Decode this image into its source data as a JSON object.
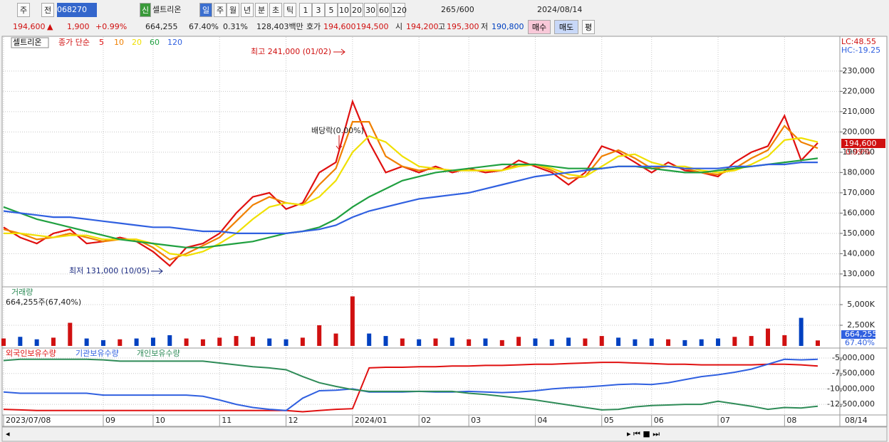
{
  "toolbar": {
    "row1": [
      "주",
      "전",
      "068270",
      "신",
      "셀트리온",
      "일",
      "주",
      "월",
      "년",
      "분",
      "초",
      "틱",
      "1",
      "3",
      "5",
      "10",
      "20",
      "30",
      "60",
      "120",
      "265",
      "/600",
      "2024/08/14"
    ],
    "row2": [
      "194,600",
      "▲",
      "1,900",
      "+0.99%",
      "664,255",
      "67.40%",
      "0.31%",
      "128,403백만",
      "호가",
      "194,600",
      "194,500",
      "시",
      "194,200",
      "고",
      "195,300",
      "저",
      "190,800",
      "매수",
      "매도",
      "평"
    ]
  },
  "chart_data": [
    {
      "type": "line",
      "stock": "셀트리온",
      "legend_title": "종가 단순",
      "annotations": [
        "최고 241,000 (01/02)",
        "배당락(0.00%)",
        "최저 131,000 (10/05)"
      ],
      "side_labels": [
        "LC:48.55",
        "HC:-19.25"
      ],
      "last_price": "194,600",
      "last_change": "0.99%",
      "ylim": [
        124000,
        246800
      ],
      "yticks": [
        {
          "value": 130000,
          "label": "130,000"
        },
        {
          "value": 140000,
          "label": "140,000"
        },
        {
          "value": 150000,
          "label": "150,000"
        },
        {
          "value": 160000,
          "label": "160,000"
        },
        {
          "value": 170000,
          "label": "170,000"
        },
        {
          "value": 180000,
          "label": "180,000"
        },
        {
          "value": 190000,
          "label": "190,000"
        },
        {
          "value": 200000,
          "label": "200,000"
        },
        {
          "value": 210000,
          "label": "210,000"
        },
        {
          "value": 220000,
          "label": "220,000"
        },
        {
          "value": 230000,
          "label": "230,000"
        }
      ],
      "grid": true,
      "series": [
        {
          "name": "5",
          "color": "#e01010",
          "values": [
            153000,
            148000,
            145000,
            150000,
            152000,
            145000,
            146000,
            148000,
            146000,
            141000,
            134000,
            143000,
            145000,
            150000,
            160000,
            168000,
            170000,
            162000,
            165000,
            180000,
            185000,
            215000,
            195000,
            180000,
            183000,
            180000,
            183000,
            180000,
            182000,
            180000,
            181000,
            186000,
            183000,
            180000,
            174000,
            180000,
            193000,
            190000,
            185000,
            180000,
            185000,
            181000,
            180000,
            178000,
            185000,
            190000,
            193000,
            208000,
            186000,
            194600
          ]
        },
        {
          "name": "10",
          "color": "#f08000",
          "values": [
            152000,
            150000,
            147000,
            148000,
            150000,
            148000,
            146000,
            147000,
            147000,
            143000,
            137000,
            140000,
            144000,
            148000,
            156000,
            164000,
            168000,
            165000,
            164000,
            174000,
            182000,
            205000,
            205000,
            188000,
            183000,
            181000,
            182000,
            181000,
            181000,
            181000,
            181000,
            184000,
            184000,
            181000,
            177000,
            178000,
            188000,
            191000,
            187000,
            182000,
            183000,
            182000,
            180000,
            179000,
            182000,
            187000,
            191000,
            203000,
            195000,
            192000
          ]
        },
        {
          "name": "20",
          "color": "#f0e000",
          "values": [
            150000,
            150000,
            149000,
            148000,
            149000,
            149000,
            147000,
            147000,
            147000,
            145000,
            140000,
            139000,
            141000,
            145000,
            150000,
            157000,
            163000,
            165000,
            164000,
            168000,
            176000,
            190000,
            198000,
            195000,
            188000,
            183000,
            182000,
            181000,
            181000,
            181000,
            181000,
            183000,
            184000,
            182000,
            179000,
            178000,
            183000,
            188000,
            189000,
            185000,
            183000,
            183000,
            181000,
            180000,
            181000,
            184000,
            188000,
            196000,
            197000,
            195000
          ]
        },
        {
          "name": "60",
          "color": "#20a040",
          "values": [
            163000,
            160000,
            157000,
            155000,
            153000,
            151000,
            149000,
            147000,
            146000,
            145000,
            144000,
            143000,
            143000,
            144000,
            145000,
            146000,
            148000,
            150000,
            151000,
            153000,
            157000,
            163000,
            168000,
            172000,
            176000,
            178000,
            180000,
            181000,
            182000,
            183000,
            184000,
            184000,
            184000,
            183000,
            182000,
            182000,
            182000,
            183000,
            183000,
            182000,
            181000,
            180000,
            180000,
            181000,
            182000,
            183000,
            184000,
            185000,
            186000,
            187000
          ]
        },
        {
          "name": "120",
          "color": "#3060e0",
          "values": [
            161000,
            160000,
            159000,
            158000,
            158000,
            157000,
            156000,
            155000,
            154000,
            153000,
            153000,
            152000,
            151000,
            151000,
            150000,
            150000,
            150000,
            150000,
            151000,
            152000,
            154000,
            158000,
            161000,
            163000,
            165000,
            167000,
            168000,
            169000,
            170000,
            172000,
            174000,
            176000,
            178000,
            179000,
            180000,
            181000,
            182000,
            183000,
            183000,
            183000,
            183000,
            182000,
            182000,
            182000,
            183000,
            183000,
            184000,
            184000,
            185000,
            185000
          ]
        }
      ]
    },
    {
      "type": "bar",
      "title": "거래량",
      "subtitle": "664,255주(67,40%)",
      "last_volume": "664,255",
      "last_ratio": "67.40%",
      "ylim": [
        0,
        7070000
      ],
      "yticks": [
        {
          "value": 2500000,
          "label": "2,500K"
        },
        {
          "value": 5000000,
          "label": "5,000K"
        }
      ],
      "values": [
        900000,
        1100000,
        800000,
        1000000,
        2800000,
        900000,
        700000,
        800000,
        900000,
        1000000,
        1300000,
        900000,
        800000,
        1000000,
        1200000,
        1100000,
        900000,
        800000,
        1000000,
        2500000,
        1500000,
        6000000,
        1500000,
        1200000,
        900000,
        800000,
        900000,
        1000000,
        800000,
        900000,
        700000,
        1100000,
        900000,
        800000,
        1000000,
        900000,
        1200000,
        1000000,
        800000,
        900000,
        800000,
        700000,
        800000,
        900000,
        1100000,
        1200000,
        2100000,
        1300000,
        3400000,
        664255
      ],
      "colors": [
        "#d01010",
        "#0040c0",
        "#0040c0",
        "#d01010",
        "#d01010",
        "#0040c0",
        "#0040c0",
        "#d01010",
        "#0040c0",
        "#0040c0",
        "#0040c0",
        "#d01010",
        "#d01010",
        "#d01010",
        "#d01010",
        "#d01010",
        "#0040c0",
        "#0040c0",
        "#d01010",
        "#d01010",
        "#d01010",
        "#d01010",
        "#0040c0",
        "#0040c0",
        "#d01010",
        "#0040c0",
        "#d01010",
        "#0040c0",
        "#d01010",
        "#0040c0",
        "#d01010",
        "#d01010",
        "#0040c0",
        "#0040c0",
        "#0040c0",
        "#d01010",
        "#d01010",
        "#0040c0",
        "#0040c0",
        "#0040c0",
        "#d01010",
        "#0040c0",
        "#0040c0",
        "#0040c0",
        "#d01010",
        "#d01010",
        "#d01010",
        "#d01010",
        "#0040c0",
        "#d01010"
      ]
    },
    {
      "type": "line",
      "end_label": "08/14",
      "categories": [
        "2023/07/08",
        null,
        null,
        null,
        null,
        null,
        "09",
        null,
        null,
        "10",
        null,
        null,
        null,
        "11",
        null,
        null,
        null,
        "12",
        null,
        null,
        null,
        "2024/01",
        null,
        null,
        null,
        "02",
        null,
        null,
        "03",
        null,
        null,
        null,
        "04",
        null,
        null,
        null,
        "05",
        null,
        null,
        "06",
        null,
        null,
        null,
        "07",
        null,
        null,
        null,
        "08",
        null,
        null
      ],
      "ylim": [
        -14100000,
        -3500000
      ],
      "yticks": [
        {
          "value": -5000000,
          "label": "-5,000,000"
        },
        {
          "value": -7500000,
          "label": "-7,500,000"
        },
        {
          "value": -10000000,
          "label": "-10,000,000"
        },
        {
          "value": -12500000,
          "label": "-12,500,000"
        }
      ],
      "series": [
        {
          "name": "외국인보유수량",
          "color": "#e01010",
          "values": [
            -13300000,
            -13400000,
            -13500000,
            -13500000,
            -13500000,
            -13500000,
            -13500000,
            -13500000,
            -13500000,
            -13500000,
            -13500000,
            -13500000,
            -13500000,
            -13500000,
            -13500000,
            -13500000,
            -13500000,
            -13500000,
            -13700000,
            -13500000,
            -13300000,
            -13200000,
            -6600000,
            -6500000,
            -6500000,
            -6400000,
            -6400000,
            -6300000,
            -6300000,
            -6200000,
            -6200000,
            -6100000,
            -6000000,
            -6000000,
            -5900000,
            -5800000,
            -5700000,
            -5700000,
            -5800000,
            -5900000,
            -6000000,
            -6000000,
            -6100000,
            -6100000,
            -6100000,
            -6100000,
            -6000000,
            -6000000,
            -6100000,
            -6300000
          ]
        },
        {
          "name": "기관보유수량",
          "color": "#3060e0",
          "values": [
            -10500000,
            -10700000,
            -10700000,
            -10700000,
            -10700000,
            -10700000,
            -11000000,
            -11000000,
            -11000000,
            -11000000,
            -11000000,
            -11000000,
            -11200000,
            -11800000,
            -12500000,
            -13000000,
            -13300000,
            -13500000,
            -11500000,
            -10300000,
            -10200000,
            -10000000,
            -10500000,
            -10500000,
            -10500000,
            -10400000,
            -10500000,
            -10500000,
            -10400000,
            -10500000,
            -10600000,
            -10500000,
            -10300000,
            -10000000,
            -9800000,
            -9700000,
            -9500000,
            -9300000,
            -9200000,
            -9300000,
            -9000000,
            -8500000,
            -8000000,
            -7700000,
            -7300000,
            -6800000,
            -6000000,
            -5200000,
            -5300000,
            -5200000
          ]
        },
        {
          "name": "개인보유수량",
          "color": "#2e8b57",
          "values": [
            -5400000,
            -5200000,
            -5200000,
            -5200000,
            -5200000,
            -5200000,
            -5300000,
            -5500000,
            -5500000,
            -5500000,
            -5500000,
            -5500000,
            -5500000,
            -5800000,
            -6100000,
            -6400000,
            -6600000,
            -6900000,
            -8000000,
            -9000000,
            -9600000,
            -10100000,
            -10400000,
            -10400000,
            -10400000,
            -10400000,
            -10400000,
            -10400000,
            -10700000,
            -10900000,
            -11200000,
            -11500000,
            -11800000,
            -12200000,
            -12600000,
            -13000000,
            -13400000,
            -13300000,
            -12900000,
            -12700000,
            -12600000,
            -12500000,
            -12500000,
            -12000000,
            -12400000,
            -12800000,
            -13300000,
            -13000000,
            -13100000,
            -12800000
          ]
        }
      ]
    }
  ]
}
